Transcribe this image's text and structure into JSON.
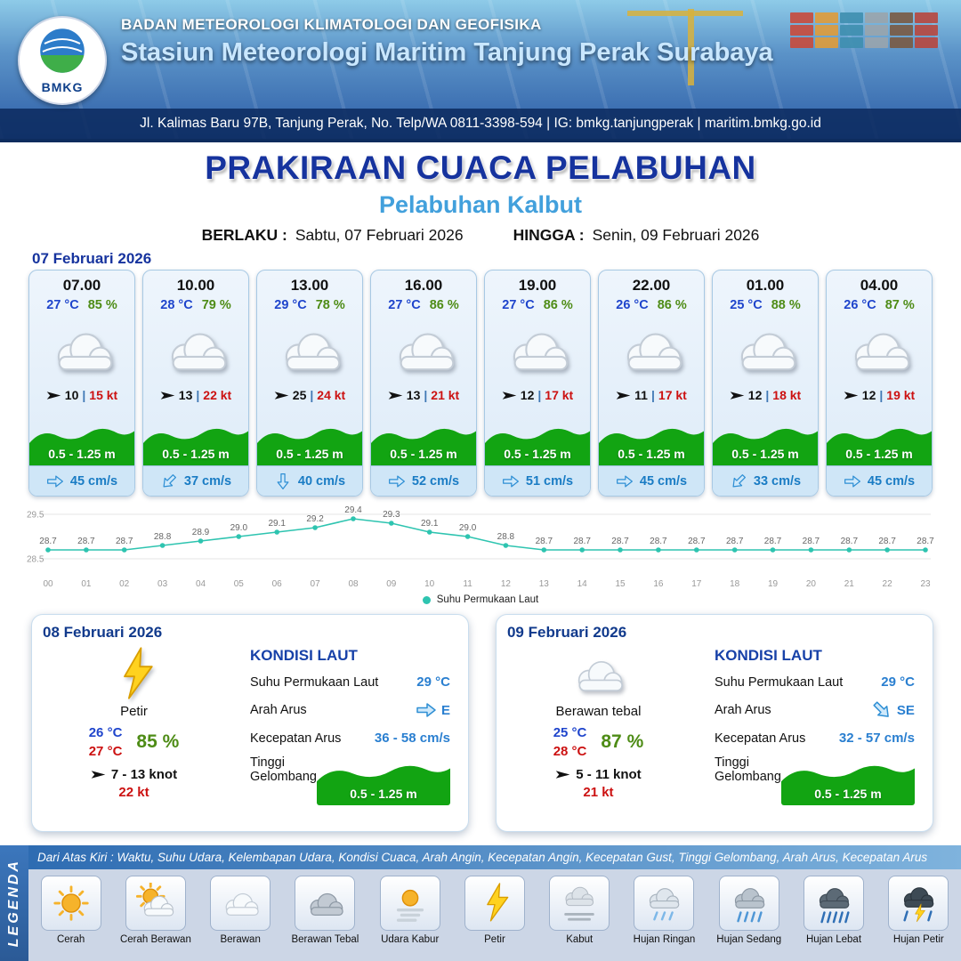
{
  "header": {
    "org": "BADAN METEOROLOGI KLIMATOLOGI DAN GEOFISIKA",
    "station": "Stasiun Meteorologi Maritim Tanjung Perak Surabaya",
    "address": "Jl. Kalimas Baru 97B, Tanjung Perak, No. Telp/WA 0811-3398-594 | IG: bmkg.tanjungperak | maritim.bmkg.go.id",
    "logo_text": "BMKG"
  },
  "title": {
    "main": "PRAKIRAAN CUACA PELABUHAN",
    "sub": "Pelabuhan Kalbut",
    "valid_label": "BERLAKU :",
    "valid_value": "Sabtu, 07 Februari 2026",
    "until_label": "HINGGA :",
    "until_value": "Senin, 09 Februari 2026"
  },
  "labels": {
    "sep": "|"
  },
  "icons": {
    "wind": "wind-arrow",
    "current": "current-arrow"
  },
  "forecast": {
    "date": "07 Februari 2026",
    "cards": [
      {
        "time": "07.00",
        "temp": "27 °C",
        "rh": "85 %",
        "icon": "cloud",
        "wind": "10",
        "gust": "15 kt",
        "wind_deg": 0,
        "wave": "0.5 - 1.25 m",
        "current": "45 cm/s",
        "cur_deg": 0
      },
      {
        "time": "10.00",
        "temp": "28 °C",
        "rh": "79 %",
        "icon": "cloud",
        "wind": "13",
        "gust": "22 kt",
        "wind_deg": 0,
        "wave": "0.5 - 1.25 m",
        "current": "37 cm/s",
        "cur_deg": 135
      },
      {
        "time": "13.00",
        "temp": "29 °C",
        "rh": "78 %",
        "icon": "cloud",
        "wind": "25",
        "gust": "24 kt",
        "wind_deg": 0,
        "wave": "0.5 - 1.25 m",
        "current": "40 cm/s",
        "cur_deg": 90
      },
      {
        "time": "16.00",
        "temp": "27 °C",
        "rh": "86 %",
        "icon": "cloud",
        "wind": "13",
        "gust": "21 kt",
        "wind_deg": 0,
        "wave": "0.5 - 1.25 m",
        "current": "52 cm/s",
        "cur_deg": 0
      },
      {
        "time": "19.00",
        "temp": "27 °C",
        "rh": "86 %",
        "icon": "cloud",
        "wind": "12",
        "gust": "17 kt",
        "wind_deg": 0,
        "wave": "0.5 - 1.25 m",
        "current": "51 cm/s",
        "cur_deg": 0
      },
      {
        "time": "22.00",
        "temp": "26 °C",
        "rh": "86 %",
        "icon": "cloud",
        "wind": "11",
        "gust": "17 kt",
        "wind_deg": 0,
        "wave": "0.5 - 1.25 m",
        "current": "45 cm/s",
        "cur_deg": 0
      },
      {
        "time": "01.00",
        "temp": "25 °C",
        "rh": "88 %",
        "icon": "cloud",
        "wind": "12",
        "gust": "18 kt",
        "wind_deg": 0,
        "wave": "0.5 - 1.25 m",
        "current": "33 cm/s",
        "cur_deg": 135
      },
      {
        "time": "04.00",
        "temp": "26 °C",
        "rh": "87 %",
        "icon": "cloud",
        "wind": "12",
        "gust": "19 kt",
        "wind_deg": 0,
        "wave": "0.5 - 1.25 m",
        "current": "45 cm/s",
        "cur_deg": 0
      }
    ]
  },
  "chart_data": {
    "type": "line",
    "title": "",
    "legend": "Suhu Permukaan Laut",
    "x": [
      "00",
      "01",
      "02",
      "03",
      "04",
      "05",
      "06",
      "07",
      "08",
      "09",
      "10",
      "11",
      "12",
      "13",
      "14",
      "15",
      "16",
      "17",
      "18",
      "19",
      "20",
      "21",
      "22",
      "23"
    ],
    "values": [
      28.7,
      28.7,
      28.7,
      28.8,
      28.9,
      29.0,
      29.1,
      29.2,
      29.4,
      29.3,
      29.1,
      29.0,
      28.8,
      28.7,
      28.7,
      28.7,
      28.7,
      28.7,
      28.7,
      28.7,
      28.7,
      28.7,
      28.7,
      28.7
    ],
    "ylim": [
      28.5,
      29.5
    ],
    "line_color": "#2ec4b0",
    "grid": true,
    "legend_position": "bottom"
  },
  "days": [
    {
      "date": "08 Februari 2026",
      "icon": "lightning",
      "weather": "Petir",
      "temp_min": "26 °C",
      "temp_max": "27 °C",
      "rh": "85 %",
      "wind": "7  - 13 knot",
      "gust": "22 kt",
      "wind_deg": 0,
      "sea": {
        "heading": "KONDISI LAUT",
        "sst_label": "Suhu Permukaan Laut",
        "sst": "29 °C",
        "dir_label": "Arah Arus",
        "dir": "E",
        "dir_deg": 0,
        "speed_label": "Kecepatan Arus",
        "speed": "36 - 58 cm/s",
        "wave_label": "Tinggi Gelombang",
        "wave": "0.5 - 1.25 m"
      }
    },
    {
      "date": "09 Februari 2026",
      "icon": "cloud",
      "weather": "Berawan tebal",
      "temp_min": "25 °C",
      "temp_max": "28 °C",
      "rh": "87 %",
      "wind": "5  - 11 knot",
      "gust": "21 kt",
      "wind_deg": 0,
      "sea": {
        "heading": "KONDISI LAUT",
        "sst_label": "Suhu Permukaan Laut",
        "sst": "29 °C",
        "dir_label": "Arah Arus",
        "dir": "SE",
        "dir_deg": 45,
        "speed_label": "Kecepatan Arus",
        "speed": "32 - 57 cm/s",
        "wave_label": "Tinggi Gelombang",
        "wave": "0.5 - 1.25 m"
      }
    }
  ],
  "legend": {
    "title": "LEGENDA",
    "description": "Dari Atas Kiri : Waktu, Suhu Udara, Kelembapan Udara, Kondisi Cuaca, Arah Angin, Kecepatan Angin, Kecepatan Gust, Tinggi Gelombang, Arah Arus, Kecepatan Arus",
    "items": [
      {
        "label": "Cerah",
        "icon": "sun"
      },
      {
        "label": "Cerah Berawan",
        "icon": "sun-cloud"
      },
      {
        "label": "Berawan",
        "icon": "cloud"
      },
      {
        "label": "Berawan Tebal",
        "icon": "cloud-thick"
      },
      {
        "label": "Udara Kabur",
        "icon": "haze"
      },
      {
        "label": "Petir",
        "icon": "lightning"
      },
      {
        "label": "Kabut",
        "icon": "fog"
      },
      {
        "label": "Hujan Ringan",
        "icon": "rain-light"
      },
      {
        "label": "Hujan Sedang",
        "icon": "rain-moderate"
      },
      {
        "label": "Hujan Lebat",
        "icon": "rain-heavy"
      },
      {
        "label": "Hujan Petir",
        "icon": "thunderstorm"
      }
    ]
  },
  "colors": {
    "accent_blue": "#16339e",
    "subtitle_blue": "#42a0dc",
    "temp_blue": "#1f45cc",
    "humidity_green": "#4e8c16",
    "gust_red": "#cc1111",
    "wave_green": "#12a412",
    "current_blue": "#1a7cc4",
    "chart_teal": "#2ec4b0"
  }
}
